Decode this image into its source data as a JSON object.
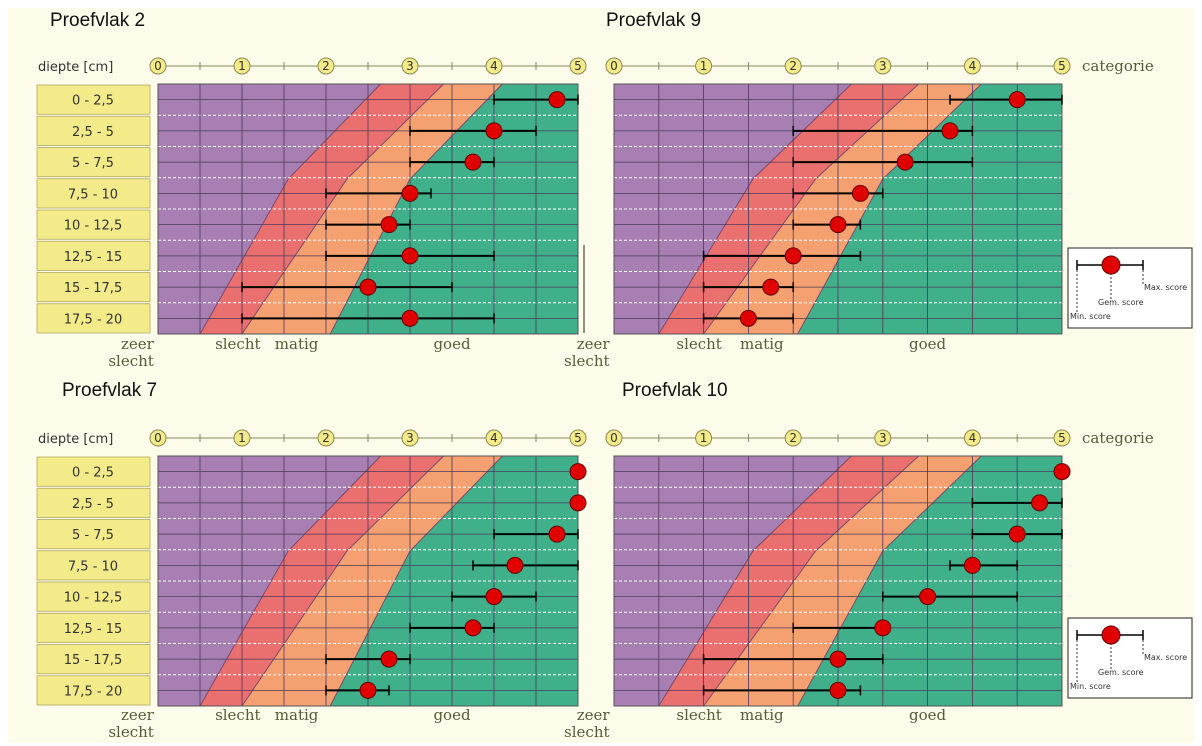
{
  "panels": [
    {
      "title": "Proefvlak 2"
    },
    {
      "title": "Proefvlak 9"
    },
    {
      "title": "Proefvlak 7"
    },
    {
      "title": "Proefvlak 10"
    }
  ],
  "colors": {
    "zeer_slecht": "#a77fb3",
    "slecht": "#ea6f6f",
    "matig": "#f5a070",
    "goed": "#3fb08a",
    "label_box": "#f3ea8a",
    "marker": "#e00000"
  },
  "chart_data": [
    {
      "type": "scatter",
      "title": "Proefvlak 2",
      "xlabel": "categorie",
      "ylabel": "diepte [cm]",
      "categories": [
        "0 - 2,5",
        "2,5 - 5",
        "5 - 7,5",
        "7,5 - 10",
        "10 - 12,5",
        "12,5 - 15",
        "15 - 17,5",
        "17,5 - 20"
      ],
      "x_ticks": [
        "0",
        "1",
        "2",
        "3",
        "4",
        "5"
      ],
      "xlim": [
        0,
        5
      ],
      "zone_labels": [
        "zeer slecht",
        "slecht",
        "matig",
        "goed"
      ],
      "series": [
        {
          "name": "Gem. score",
          "mean": [
            4.75,
            4.0,
            3.75,
            3.0,
            2.75,
            3.0,
            2.5,
            3.0
          ]
        },
        {
          "name": "Min. score",
          "min": [
            4.0,
            3.0,
            3.0,
            2.0,
            2.0,
            2.0,
            1.0,
            1.0
          ]
        },
        {
          "name": "Max. score",
          "max": [
            5.0,
            4.5,
            4.0,
            3.25,
            3.0,
            4.0,
            3.5,
            4.0
          ]
        }
      ]
    },
    {
      "type": "scatter",
      "title": "Proefvlak 9",
      "xlabel": "categorie",
      "ylabel": "diepte [cm]",
      "categories": [
        "0 - 2,5",
        "2,5 - 5",
        "5 - 7,5",
        "7,5 - 10",
        "10 - 12,5",
        "12,5 - 15",
        "15 - 17,5",
        "17,5 - 20"
      ],
      "x_ticks": [
        "0",
        "1",
        "2",
        "3",
        "4",
        "5"
      ],
      "xlim": [
        0,
        5
      ],
      "zone_labels": [
        "zeer slecht",
        "slecht",
        "matig",
        "goed"
      ],
      "series": [
        {
          "name": "Gem. score",
          "mean": [
            4.5,
            3.75,
            3.25,
            2.75,
            2.5,
            2.0,
            1.75,
            1.5
          ]
        },
        {
          "name": "Min. score",
          "min": [
            3.75,
            2.0,
            2.0,
            2.0,
            2.0,
            1.0,
            1.0,
            1.0
          ]
        },
        {
          "name": "Max. score",
          "max": [
            5.0,
            4.0,
            4.0,
            3.0,
            2.75,
            2.75,
            2.0,
            2.0
          ]
        }
      ]
    },
    {
      "type": "scatter",
      "title": "Proefvlak 7",
      "xlabel": "categorie",
      "ylabel": "diepte [cm]",
      "categories": [
        "0 - 2,5",
        "2,5 - 5",
        "5 - 7,5",
        "7,5 - 10",
        "10 - 12,5",
        "12,5 - 15",
        "15 - 17,5",
        "17,5 - 20"
      ],
      "x_ticks": [
        "0",
        "1",
        "2",
        "3",
        "4",
        "5"
      ],
      "xlim": [
        0,
        5
      ],
      "zone_labels": [
        "zeer slecht",
        "slecht",
        "matig",
        "goed"
      ],
      "series": [
        {
          "name": "Gem. score",
          "mean": [
            5.0,
            5.0,
            4.75,
            4.25,
            4.0,
            3.75,
            2.75,
            2.5
          ]
        },
        {
          "name": "Min. score",
          "min": [
            5.0,
            5.0,
            4.0,
            3.75,
            3.5,
            3.0,
            2.0,
            2.0
          ]
        },
        {
          "name": "Max. score",
          "max": [
            5.0,
            5.0,
            5.0,
            5.0,
            4.5,
            4.0,
            3.0,
            2.75
          ]
        }
      ]
    },
    {
      "type": "scatter",
      "title": "Proefvlak 10",
      "xlabel": "categorie",
      "ylabel": "diepte [cm]",
      "categories": [
        "0 - 2,5",
        "2,5 - 5",
        "5 - 7,5",
        "7,5 - 10",
        "10 - 12,5",
        "12,5 - 15",
        "15 - 17,5",
        "17,5 - 20"
      ],
      "x_ticks": [
        "0",
        "1",
        "2",
        "3",
        "4",
        "5"
      ],
      "xlim": [
        0,
        5
      ],
      "zone_labels": [
        "zeer slecht",
        "slecht",
        "matig",
        "goed"
      ],
      "series": [
        {
          "name": "Gem. score",
          "mean": [
            5.0,
            4.75,
            4.5,
            4.0,
            3.5,
            3.0,
            2.5,
            2.5
          ]
        },
        {
          "name": "Min. score",
          "min": [
            5.0,
            4.0,
            4.0,
            3.75,
            3.0,
            2.0,
            1.0,
            1.0
          ]
        },
        {
          "name": "Max. score",
          "max": [
            5.0,
            5.0,
            5.0,
            4.5,
            4.5,
            3.0,
            3.0,
            2.75
          ]
        }
      ]
    }
  ],
  "legend": {
    "max_label": "Max. score",
    "mean_label": "Gem. score",
    "min_label": "Min. score"
  }
}
